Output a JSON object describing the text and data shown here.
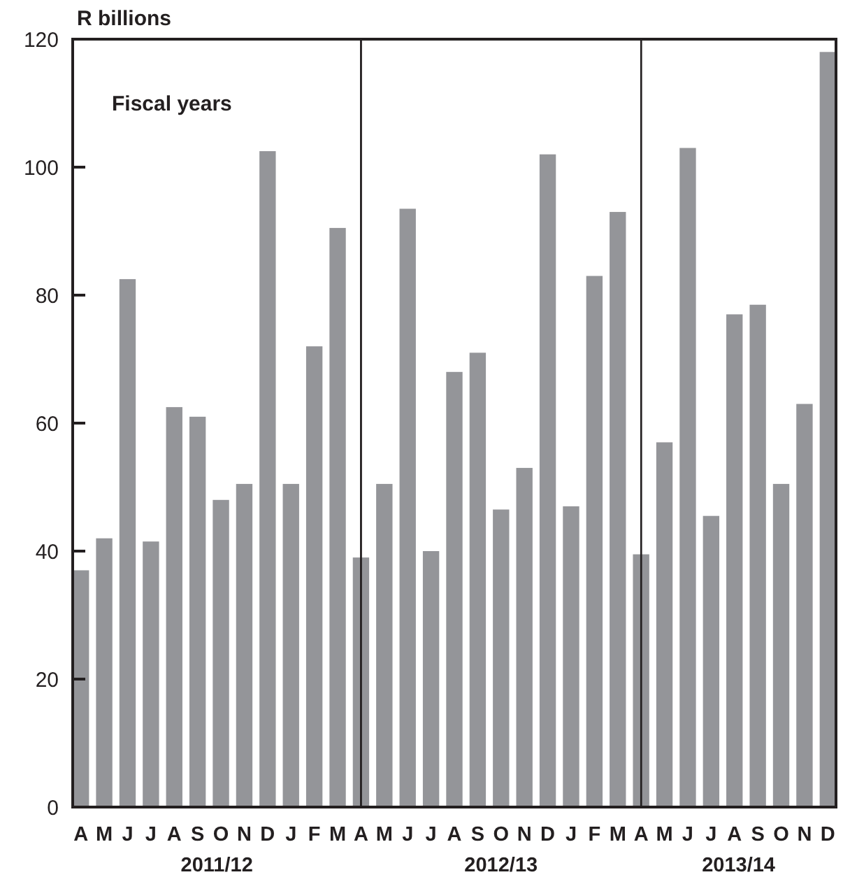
{
  "chart_data": {
    "type": "bar",
    "ylabel": "R billions",
    "categories": [
      "A",
      "M",
      "J",
      "J",
      "A",
      "S",
      "O",
      "N",
      "D",
      "J",
      "F",
      "M",
      "A",
      "M",
      "J",
      "J",
      "A",
      "S",
      "O",
      "N",
      "D",
      "J",
      "F",
      "M",
      "A",
      "M",
      "J",
      "J",
      "A",
      "S",
      "O",
      "N",
      "D"
    ],
    "values": [
      37,
      42,
      82.5,
      41.5,
      62.5,
      61,
      48,
      50.5,
      102.5,
      50.5,
      72,
      90.5,
      39,
      50.5,
      93.5,
      40,
      68,
      71,
      46.5,
      53,
      102,
      47,
      83,
      93,
      39.5,
      57,
      103,
      45.5,
      77,
      78.5,
      50.5,
      63,
      118
    ],
    "color": "#949599",
    "ylim": [
      0,
      120
    ],
    "yticks": [
      0,
      20,
      40,
      60,
      80,
      100,
      120
    ],
    "annotations": [
      "Fiscal years",
      "2011/12",
      "2012/13",
      "2013/14"
    ]
  }
}
